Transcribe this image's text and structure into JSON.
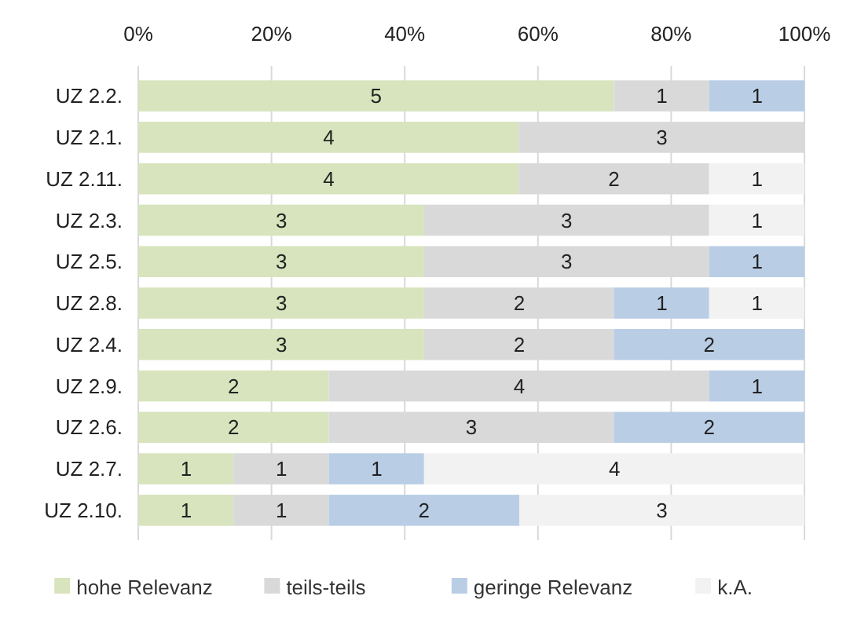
{
  "chart_data": {
    "type": "bar",
    "orientation": "horizontal",
    "stacked": true,
    "categories": [
      "UZ 2.2.",
      "UZ 2.1.",
      "UZ 2.11.",
      "UZ 2.3.",
      "UZ 2.5.",
      "UZ 2.8.",
      "UZ 2.4.",
      "UZ 2.9.",
      "UZ 2.6.",
      "UZ 2.7.",
      "UZ 2.10."
    ],
    "series": [
      {
        "name": "hohe Relevanz",
        "color": "#d7e4bd",
        "values": [
          71.4,
          57.1,
          57.1,
          42.9,
          42.9,
          42.9,
          42.9,
          28.6,
          28.6,
          14.3,
          14.3
        ]
      },
      {
        "name": "teils-teils",
        "color": "#d9d9d9",
        "values": [
          14.3,
          42.9,
          28.6,
          42.8,
          42.8,
          28.5,
          28.5,
          57.1,
          42.8,
          14.3,
          14.3
        ]
      },
      {
        "name": "geringe Relevanz",
        "color": "#b9cde5",
        "values": [
          14.3,
          0,
          0,
          0,
          14.3,
          14.3,
          28.6,
          14.3,
          28.6,
          14.3,
          28.6
        ]
      },
      {
        "name": "k.A.",
        "color": "#f2f2f2",
        "values": [
          0,
          0,
          14.3,
          14.3,
          0,
          14.3,
          0,
          0,
          0,
          57.1,
          42.8
        ]
      }
    ],
    "annotations": [
      {
        "text": "5",
        "x": 35.7,
        "y": "UZ 2.2."
      },
      {
        "text": "1",
        "x": 78.6,
        "y": "UZ 2.2."
      },
      {
        "text": "1",
        "x": 92.9,
        "y": "UZ 2.2."
      },
      {
        "text": "4",
        "x": 28.6,
        "y": "UZ 2.1."
      },
      {
        "text": "3",
        "x": 78.6,
        "y": "UZ 2.1."
      },
      {
        "text": "4",
        "x": 28.6,
        "y": "UZ 2.11."
      },
      {
        "text": "2",
        "x": 71.4,
        "y": "UZ 2.11."
      },
      {
        "text": "1",
        "x": 92.9,
        "y": "UZ 2.11."
      },
      {
        "text": "3",
        "x": 21.5,
        "y": "UZ 2.3."
      },
      {
        "text": "3",
        "x": 64.3,
        "y": "UZ 2.3."
      },
      {
        "text": "1",
        "x": 92.9,
        "y": "UZ 2.3."
      },
      {
        "text": "3",
        "x": 21.5,
        "y": "UZ 2.5."
      },
      {
        "text": "3",
        "x": 64.3,
        "y": "UZ 2.5."
      },
      {
        "text": "1",
        "x": 92.9,
        "y": "UZ 2.5."
      },
      {
        "text": "3",
        "x": 21.5,
        "y": "UZ 2.8."
      },
      {
        "text": "2",
        "x": 57.2,
        "y": "UZ 2.8."
      },
      {
        "text": "1",
        "x": 78.6,
        "y": "UZ 2.8."
      },
      {
        "text": "1",
        "x": 92.9,
        "y": "UZ 2.8."
      },
      {
        "text": "3",
        "x": 21.5,
        "y": "UZ 2.4."
      },
      {
        "text": "2",
        "x": 57.2,
        "y": "UZ 2.4."
      },
      {
        "text": "2",
        "x": 85.7,
        "y": "UZ 2.4."
      },
      {
        "text": "2",
        "x": 14.3,
        "y": "UZ 2.9."
      },
      {
        "text": "4",
        "x": 57.2,
        "y": "UZ 2.9."
      },
      {
        "text": "1",
        "x": 92.9,
        "y": "UZ 2.9."
      },
      {
        "text": "2",
        "x": 14.3,
        "y": "UZ 2.6."
      },
      {
        "text": "3",
        "x": 50,
        "y": "UZ 2.6."
      },
      {
        "text": "2",
        "x": 85.7,
        "y": "UZ 2.6."
      },
      {
        "text": "1",
        "x": 7.2,
        "y": "UZ 2.7."
      },
      {
        "text": "1",
        "x": 21.5,
        "y": "UZ 2.7."
      },
      {
        "text": "1",
        "x": 35.8,
        "y": "UZ 2.7."
      },
      {
        "text": "4",
        "x": 71.5,
        "y": "UZ 2.7."
      },
      {
        "text": "1",
        "x": 7.2,
        "y": "UZ 2.10."
      },
      {
        "text": "1",
        "x": 21.5,
        "y": "UZ 2.10."
      },
      {
        "text": "2",
        "x": 42.9,
        "y": "UZ 2.10."
      },
      {
        "text": "3",
        "x": 78.6,
        "y": "UZ 2.10."
      }
    ],
    "xlim": [
      0,
      100
    ],
    "xticks": [
      {
        "value": 0,
        "label": "0%"
      },
      {
        "value": 20,
        "label": "20%"
      },
      {
        "value": 40,
        "label": "40%"
      },
      {
        "value": 60,
        "label": "60%"
      },
      {
        "value": 80,
        "label": "80%"
      },
      {
        "value": 100,
        "label": "100%"
      }
    ],
    "grid": "x",
    "legend": "bottom"
  }
}
